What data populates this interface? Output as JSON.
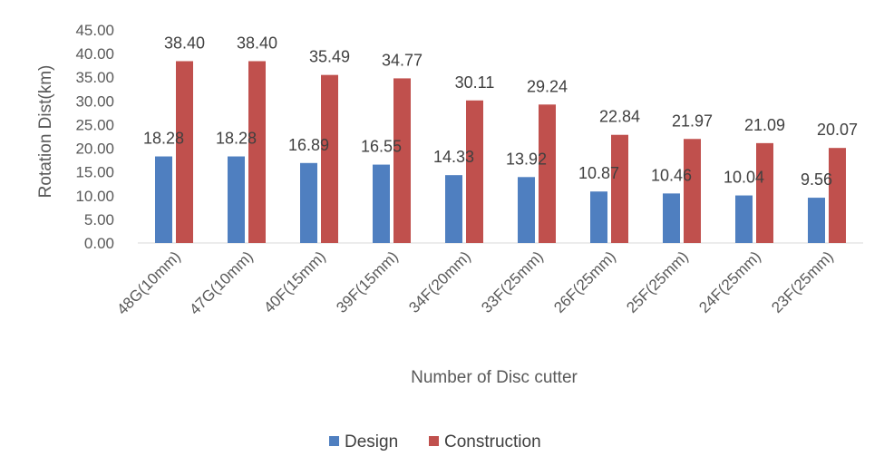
{
  "chart_data": {
    "type": "bar",
    "title": "",
    "xlabel": "Number  of Disc cutter",
    "ylabel": "Rotation Dist(km)",
    "ylim": [
      0,
      45
    ],
    "yticks": [
      "0.00",
      "5.00",
      "10.00",
      "15.00",
      "20.00",
      "25.00",
      "30.00",
      "35.00",
      "40.00",
      "45.00"
    ],
    "categories": [
      "48G(10mm)",
      "47G(10mm)",
      "40F(15mm)",
      "39F(15mm)",
      "34F(20mm)",
      "33F(25mm)",
      "26F(25mm)",
      "25F(25mm)",
      "24F(25mm)",
      "23F(25mm)"
    ],
    "series": [
      {
        "name": "Design",
        "color": "#4F7FC0",
        "values": [
          18.28,
          18.28,
          16.89,
          16.55,
          14.33,
          13.92,
          10.87,
          10.46,
          10.04,
          9.56
        ],
        "labels": [
          "18.28",
          "18.28",
          "16.89",
          "16.55",
          "14.33",
          "13.92",
          "10.87",
          "10.46",
          "10.04",
          "9.56"
        ]
      },
      {
        "name": "Construction",
        "color": "#C0504D",
        "values": [
          38.4,
          38.4,
          35.49,
          34.77,
          30.11,
          29.24,
          22.84,
          21.97,
          21.09,
          20.07
        ],
        "labels": [
          "38.40",
          "38.40",
          "35.49",
          "34.77",
          "30.11",
          "29.24",
          "22.84",
          "21.97",
          "21.09",
          "20.07"
        ]
      }
    ],
    "grid": false,
    "legend": "bottom"
  }
}
